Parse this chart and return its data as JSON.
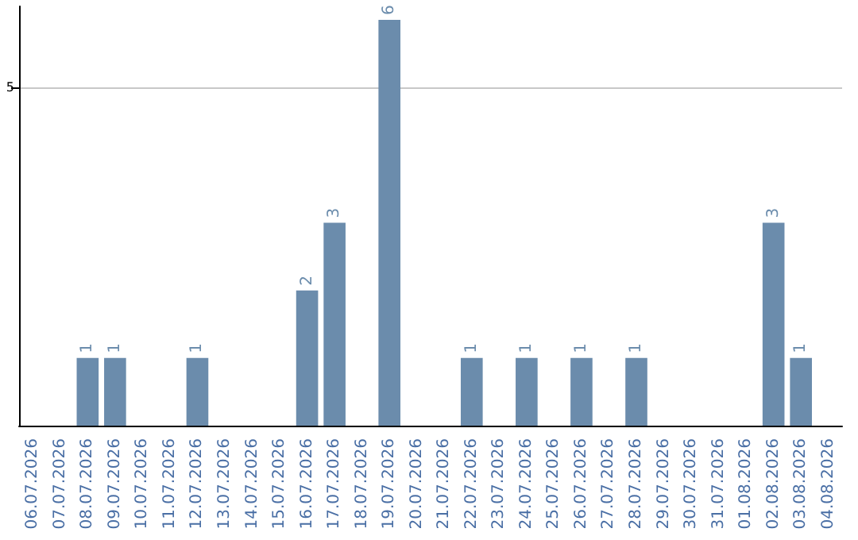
{
  "chart_data": {
    "type": "bar",
    "categories": [
      "06.07.2026",
      "07.07.2026",
      "08.07.2026",
      "09.07.2026",
      "10.07.2026",
      "11.07.2026",
      "12.07.2026",
      "13.07.2026",
      "14.07.2026",
      "15.07.2026",
      "16.07.2026",
      "17.07.2026",
      "18.07.2026",
      "19.07.2026",
      "20.07.2026",
      "21.07.2026",
      "22.07.2026",
      "23.07.2026",
      "24.07.2026",
      "25.07.2026",
      "26.07.2026",
      "27.07.2026",
      "28.07.2026",
      "29.07.2026",
      "30.07.2026",
      "31.07.2026",
      "01.08.2026",
      "02.08.2026",
      "03.08.2026",
      "04.08.2026"
    ],
    "values": [
      null,
      null,
      1,
      1,
      null,
      null,
      1,
      null,
      null,
      null,
      2,
      3,
      null,
      6,
      null,
      null,
      1,
      null,
      1,
      null,
      1,
      null,
      1,
      null,
      null,
      null,
      null,
      3,
      1,
      null
    ],
    "color": "#6b8cac",
    "ylim": [
      0,
      6.2
    ],
    "yticks": [
      5
    ],
    "grid": "y",
    "data_labels": true
  }
}
